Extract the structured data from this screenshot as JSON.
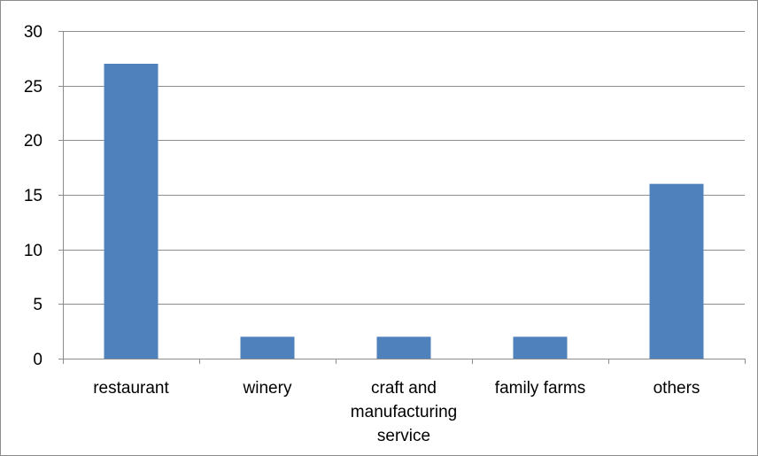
{
  "chart_data": {
    "type": "bar",
    "categories": [
      [
        "restaurant"
      ],
      [
        "winery"
      ],
      [
        "craft and",
        "manufacturing",
        "service"
      ],
      [
        "family farms"
      ],
      [
        "others"
      ]
    ],
    "values": [
      27,
      2,
      2,
      2,
      16
    ],
    "ylim": [
      0,
      30
    ],
    "yticks": [
      "0",
      "5",
      "10",
      "15",
      "20",
      "25",
      "30"
    ],
    "grid": true,
    "legend": "none",
    "colors": {
      "bar": "#4f81bd",
      "grid": "#8c8c8c",
      "axis": "#8c8c8c"
    }
  }
}
